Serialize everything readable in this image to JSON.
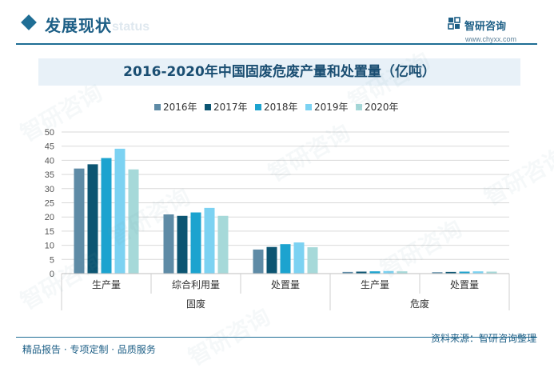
{
  "header": {
    "section_title": "发展现状",
    "section_watermark": "status",
    "brand_name": "智研咨询",
    "brand_url": "www.chyxx.com",
    "brand_color": "#1d5f86"
  },
  "footer": {
    "left_text": "精品报告 · 专项定制 · 品质服务",
    "source_text": "资料来源：智研咨询整理"
  },
  "watermark_text": "智研咨询",
  "chart_data": {
    "type": "bar",
    "title": "2016-2020年中国固废危废产量和处置量（亿吨）",
    "categories": [
      "生产量",
      "综合利用量",
      "处置量",
      "生产量",
      "处置量"
    ],
    "groups": [
      {
        "label": "固废",
        "categories": [
          "生产量",
          "综合利用量",
          "处置量"
        ]
      },
      {
        "label": "危废",
        "categories": [
          "生产量",
          "处置量"
        ]
      }
    ],
    "series": [
      {
        "name": "2016年",
        "color": "#5e8ba6",
        "values": [
          37.1,
          20.9,
          8.5,
          0.6,
          0.5
        ]
      },
      {
        "name": "2017年",
        "color": "#0c5572",
        "values": [
          38.6,
          20.4,
          9.4,
          0.7,
          0.6
        ]
      },
      {
        "name": "2018年",
        "color": "#1ca3cf",
        "values": [
          40.8,
          21.6,
          10.4,
          0.8,
          0.7
        ]
      },
      {
        "name": "2019年",
        "color": "#7cd2f2",
        "values": [
          44.1,
          23.2,
          11.0,
          0.9,
          0.8
        ]
      },
      {
        "name": "2020年",
        "color": "#a6d9d9",
        "values": [
          36.8,
          20.4,
          9.3,
          0.8,
          0.7
        ]
      }
    ],
    "ylim": [
      0,
      50
    ],
    "yticks": [
      0,
      5,
      10,
      15,
      20,
      25,
      30,
      35,
      40,
      45,
      50
    ],
    "grid": true,
    "legend_position": "top-center"
  }
}
